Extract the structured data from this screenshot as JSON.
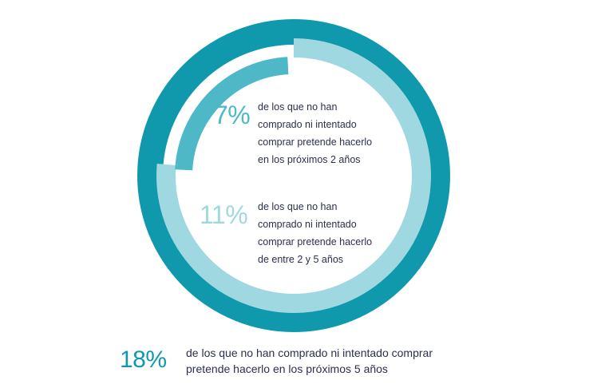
{
  "colors": {
    "outer_ring": "#1099ac",
    "inner_track": "#9fd8e1",
    "inner_arc": "#4eb8c6",
    "text_dark": "#2c2f4d"
  },
  "chart_data": {
    "type": "donut",
    "rings": [
      {
        "percent": 18,
        "label": "18%",
        "description_lines": [
          "de los que no han comprado ni intentado comprar",
          "pretende hacerlo en los próximos 5 años"
        ]
      },
      {
        "percent": 11,
        "label": "11%",
        "description_lines": [
          "de los que no han",
          "comprado ni intentado",
          "comprar pretende hacerlo",
          "de entre 2 y 5 años"
        ]
      },
      {
        "percent": 7,
        "label": "7%",
        "description_lines": [
          "de los que no han",
          "comprado ni intentado",
          "comprar pretende hacerlo",
          "en los próximos 2 años"
        ]
      }
    ]
  }
}
